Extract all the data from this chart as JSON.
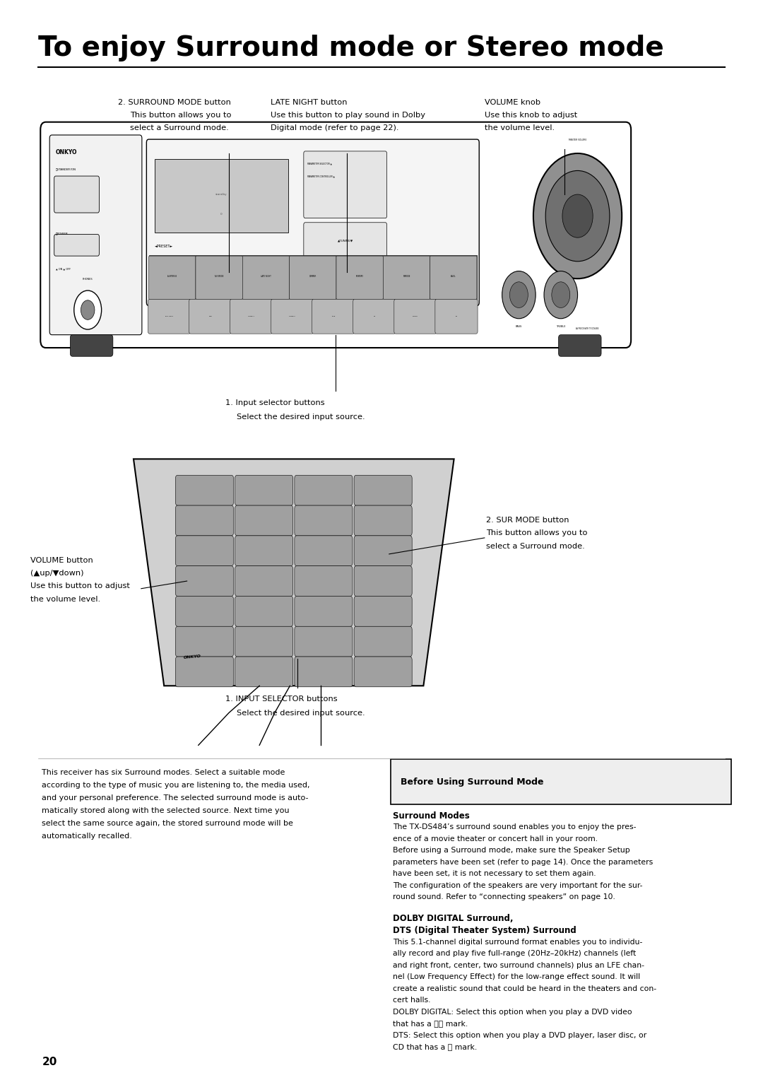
{
  "title": "To enjoy Surround mode or Stereo mode",
  "page_number": "20",
  "bg_color": "#ffffff",
  "title_fontsize": 28,
  "title_font_weight": "bold",
  "left_text_lines": [
    "This receiver has six Surround modes. Select a suitable mode",
    "according to the type of music you are listening to, the media used,",
    "and your personal preference. The selected surround mode is auto-",
    "matically stored along with the selected source. Next time you",
    "select the same source again, the stored surround mode will be",
    "automatically recalled."
  ],
  "box_title": "Before Using Surround Mode",
  "section1_title": "Surround Modes",
  "section1_body_lines": [
    "The TX-DS484’s surround sound enables you to enjoy the pres-",
    "ence of a movie theater or concert hall in your room.",
    "Before using a Surround mode, make sure the Speaker Setup",
    "parameters have been set (refer to page 14). Once the parameters",
    "have been set, it is not necessary to set them again.",
    "The configuration of the speakers are very important for the sur-",
    "round sound. Refer to “connecting speakers” on page 10."
  ],
  "section2_title_line1": "DOLBY DIGITAL Surround,",
  "section2_title_line2": "DTS (Digital Theater System) Surround",
  "section2_body_lines": [
    "This 5.1-channel digital surround format enables you to individu-",
    "ally record and play five full-range (20Hz–20kHz) channels (left",
    "and right front, center, two surround channels) plus an LFE chan-",
    "nel (Low Frequency Effect) for the low-range effect sound. It will",
    "create a realistic sound that could be heard in the theaters and con-",
    "cert halls.",
    "DOLBY DIGITAL: Select this option when you play a DVD video",
    "that has a ⧈⧈ mark.",
    "DTS: Select this option when you play a DVD player, laser disc, or",
    "CD that has a ⧈ mark."
  ]
}
